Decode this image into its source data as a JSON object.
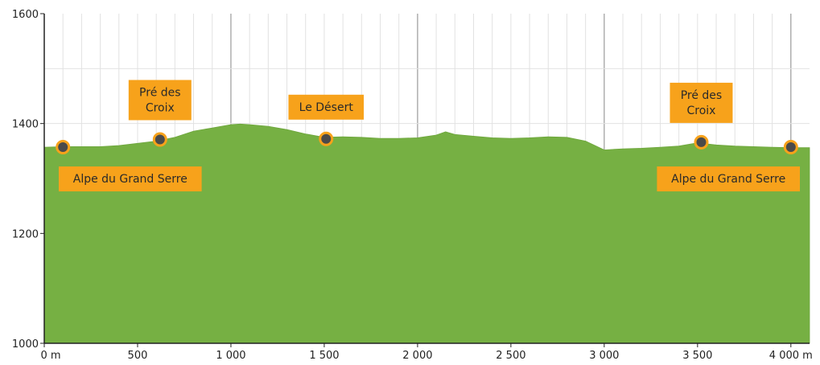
{
  "chart_data": {
    "type": "area",
    "title": "",
    "xlabel": "",
    "ylabel": "",
    "xlim": [
      0,
      4100
    ],
    "ylim": [
      1000,
      1600
    ],
    "grid": true,
    "x_ticks": [
      0,
      500,
      1000,
      1500,
      2000,
      2500,
      3000,
      3500,
      4000
    ],
    "x_tick_labels": [
      "0 m",
      "500",
      "1 000",
      "1 500",
      "2 000",
      "2 500",
      "3 000",
      "3 500",
      "4 000 m"
    ],
    "y_ticks": [
      1000,
      1200,
      1400,
      1600
    ],
    "y_tick_labels": [
      "1000",
      "1200",
      "1400",
      "1600"
    ],
    "fill_color": "#76b043",
    "marker_color": "#f7a21b",
    "series": [
      {
        "x": [
          0,
          100,
          200,
          300,
          400,
          500,
          600,
          700,
          800,
          900,
          1000,
          1050,
          1100,
          1200,
          1300,
          1400,
          1500,
          1600,
          1700,
          1800,
          1900,
          2000,
          2100,
          2150,
          2200,
          2300,
          2400,
          2500,
          2600,
          2700,
          2800,
          2900,
          2950,
          3000,
          3100,
          3200,
          3300,
          3400,
          3500,
          3600,
          3700,
          3800,
          3900,
          4000,
          4100
        ],
        "y": [
          1357,
          1358,
          1358,
          1358,
          1360,
          1364,
          1368,
          1375,
          1386,
          1392,
          1398,
          1399,
          1398,
          1395,
          1389,
          1381,
          1375,
          1376,
          1375,
          1373,
          1373,
          1374,
          1379,
          1385,
          1380,
          1377,
          1374,
          1373,
          1374,
          1376,
          1375,
          1368,
          1360,
          1352,
          1354,
          1355,
          1357,
          1359,
          1365,
          1361,
          1359,
          1358,
          1357,
          1356,
          1356
        ]
      }
    ],
    "waypoints": [
      {
        "x": 100,
        "y": 1357,
        "label_lines": [
          "Alpe du Grand Serre"
        ],
        "label_pos": "below"
      },
      {
        "x": 620,
        "y": 1371,
        "label_lines": [
          "Pré des",
          "Croix"
        ],
        "label_pos": "above"
      },
      {
        "x": 1510,
        "y": 1372,
        "label_lines": [
          "Le Désert"
        ],
        "label_pos": "above"
      },
      {
        "x": 3520,
        "y": 1366,
        "label_lines": [
          "Pré des",
          "Croix"
        ],
        "label_pos": "above"
      },
      {
        "x": 4000,
        "y": 1357,
        "label_lines": [
          "Alpe du Grand Serre"
        ],
        "label_pos": "below"
      }
    ]
  }
}
